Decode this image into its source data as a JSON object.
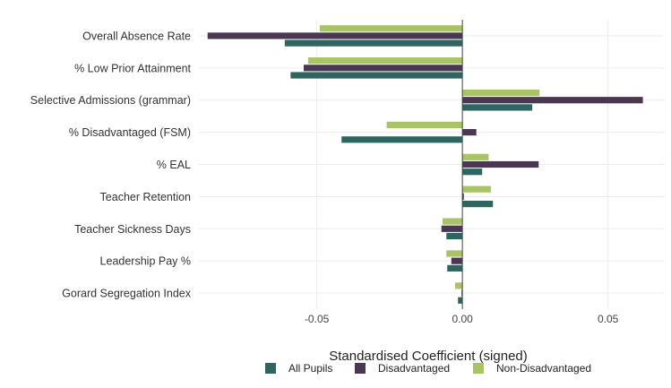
{
  "chart_data": {
    "type": "bar",
    "orientation": "horizontal",
    "title": "",
    "xlabel": "Standardised Coefficient (signed)",
    "ylabel": "",
    "xlim": [
      -0.0905,
      0.0695
    ],
    "xticks": [
      -0.05,
      0,
      0.05
    ],
    "xtick_labels": [
      "-0.05",
      "0.00",
      "0.05"
    ],
    "grid": true,
    "legend_position": "bottom",
    "categories": [
      "Overall Absence Rate",
      "% Low Prior Attainment",
      "Selective Admissions (grammar)",
      "% Disadvantaged (FSM)",
      "% EAL",
      "Teacher Retention",
      "Teacher Sickness Days",
      "Leadership Pay %",
      "Gorard Segregation Index"
    ],
    "series": [
      {
        "name": "Non-Disadvantaged",
        "color": "#a8c466",
        "values": [
          -0.049,
          -0.053,
          0.0265,
          -0.026,
          0.009,
          0.0098,
          -0.0068,
          -0.0055,
          -0.0025
        ]
      },
      {
        "name": "Disadvantaged",
        "color": "#4a3752",
        "values": [
          -0.0875,
          -0.0545,
          0.062,
          0.0048,
          0.0262,
          0.0005,
          -0.0072,
          -0.0038,
          -0.0003
        ]
      },
      {
        "name": "All Pupils",
        "color": "#2f6560",
        "values": [
          -0.061,
          -0.059,
          0.024,
          -0.0415,
          0.0068,
          0.0105,
          -0.0055,
          -0.0052,
          -0.0015
        ]
      }
    ],
    "legend_order": [
      "All Pupils",
      "Disadvantaged",
      "Non-Disadvantaged"
    ]
  }
}
